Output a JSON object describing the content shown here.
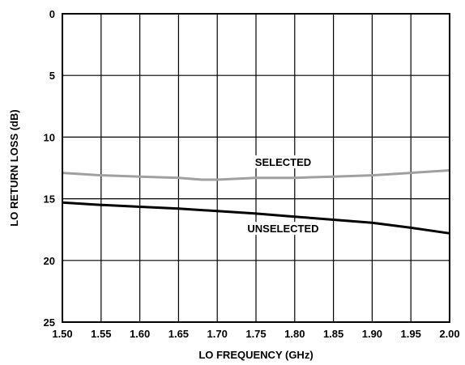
{
  "chart_data": {
    "type": "line",
    "title": "",
    "xlabel": "LO FREQUENCY (GHz)",
    "ylabel": "LO RETURN LOSS (dB)",
    "xlim": [
      1.5,
      2.0
    ],
    "ylim": [
      0,
      25
    ],
    "y_inverted": true,
    "grid": true,
    "x_ticks": [
      "1.50",
      "1.55",
      "1.60",
      "1.65",
      "1.70",
      "1.75",
      "1.80",
      "1.85",
      "1.90",
      "1.95",
      "2.00"
    ],
    "y_ticks": [
      "0",
      "5",
      "10",
      "15",
      "20",
      "25"
    ],
    "series": [
      {
        "name": "SELECTED",
        "color": "#a0a0a0",
        "points": [
          [
            1.5,
            12.9
          ],
          [
            1.55,
            13.1
          ],
          [
            1.6,
            13.2
          ],
          [
            1.65,
            13.3
          ],
          [
            1.68,
            13.45
          ],
          [
            1.7,
            13.45
          ],
          [
            1.75,
            13.3
          ],
          [
            1.8,
            13.3
          ],
          [
            1.85,
            13.2
          ],
          [
            1.9,
            13.1
          ],
          [
            1.95,
            12.9
          ],
          [
            2.0,
            12.7
          ]
        ]
      },
      {
        "name": "UNSELECTED",
        "color": "#000000",
        "points": [
          [
            1.5,
            15.3
          ],
          [
            1.55,
            15.5
          ],
          [
            1.6,
            15.65
          ],
          [
            1.65,
            15.8
          ],
          [
            1.7,
            16.0
          ],
          [
            1.75,
            16.2
          ],
          [
            1.8,
            16.45
          ],
          [
            1.85,
            16.7
          ],
          [
            1.9,
            16.95
          ],
          [
            1.95,
            17.35
          ],
          [
            2.0,
            17.8
          ]
        ]
      }
    ],
    "annotations": [
      {
        "text": "SELECTED",
        "x": 1.785,
        "y": 12.2
      },
      {
        "text": "UNSELECTED",
        "x": 1.785,
        "y": 17.6
      }
    ]
  }
}
